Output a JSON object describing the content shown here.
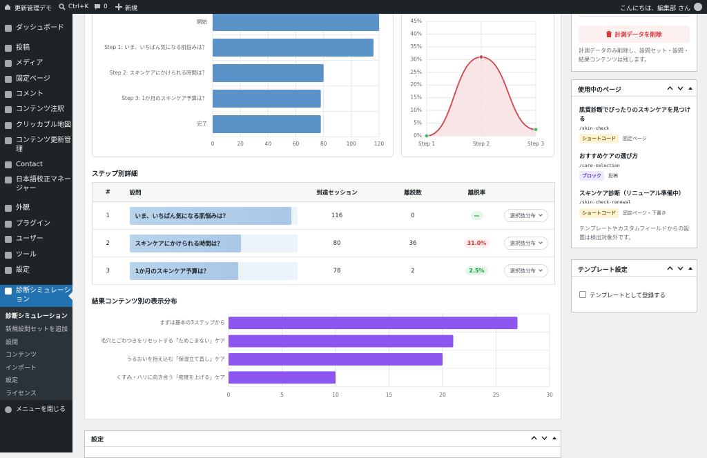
{
  "admin_bar": {
    "site": "更新管理デモ",
    "search": "Ctrl+K",
    "comments": "0",
    "new": "新規",
    "greeting": "こんにちは、編集部 さん"
  },
  "menu": {
    "items": [
      "ダッシュボード",
      "投稿",
      "メディア",
      "固定ページ",
      "コメント",
      "コンテンツ注釈",
      "クリッカブル地図",
      "コンテンツ更新管理",
      "Contact",
      "日本語校正マネージャー",
      "外観",
      "プラグイン",
      "ユーザー",
      "ツール",
      "設定"
    ],
    "current": "診断シミュレーション",
    "submenu": [
      "診断シミュレーション",
      "新規設問セットを追加",
      "設問",
      "コンテンツ",
      "インポート",
      "設定",
      "ライセンス"
    ],
    "collapse": "メニューを閉じる"
  },
  "chart_data": [
    {
      "type": "hbar",
      "categories": [
        "開始",
        "Step 1: いま、いちばん気になる肌悩みは？",
        "Step 2: スキンケアにかけられる時間は？",
        "Step 3: 1か月のスキンケア予算は？",
        "完了"
      ],
      "values": [
        120,
        116,
        80,
        78,
        78
      ],
      "color": "#5b93c9",
      "xlim": [
        0,
        120
      ],
      "xticks": [
        0,
        20,
        40,
        60,
        80,
        100,
        120
      ],
      "grid": true
    },
    {
      "type": "line",
      "categories": [
        "Step 1",
        "Step 2",
        "Step 3"
      ],
      "values": [
        0,
        31,
        2.5
      ],
      "color": "#d0454c",
      "fill_color": "#f8dde0",
      "point_colors": [
        "#4ab866",
        "#d0454c",
        "#4ab866"
      ],
      "ylim": [
        0,
        45
      ],
      "yticks": [
        {
          "value": 0,
          "label": "0%"
        },
        {
          "value": 5,
          "label": "5%"
        },
        {
          "value": 10,
          "label": "10%"
        },
        {
          "value": 15,
          "label": "15%"
        },
        {
          "value": 20,
          "label": "20%"
        },
        {
          "value": 25,
          "label": "25%"
        },
        {
          "value": 30,
          "label": "30%"
        },
        {
          "value": 35,
          "label": "35%"
        },
        {
          "value": 40,
          "label": "40%"
        },
        {
          "value": 45,
          "label": "45%"
        }
      ],
      "grid": true
    },
    {
      "type": "hbar",
      "title": "結果コンテンツ別の表示分布",
      "categories": [
        "まずは基本の3ステップから",
        "毛穴とごわつきをリセットする「ためこまない」ケア",
        "うるおいを抱え込む「保湿立て直し」ケア",
        "くすみ・ハリに向き合う「密度を上げる」ケア"
      ],
      "values": [
        27,
        21,
        20,
        10
      ],
      "color": "#8c55f0",
      "xlim": [
        0,
        30
      ],
      "xticks": [
        0,
        5,
        10,
        15,
        20,
        25,
        30
      ],
      "grid": true
    }
  ],
  "step_details": {
    "title": "ステップ別詳細",
    "columns": [
      "#",
      "設問",
      "到達セッション",
      "離脱数",
      "離脱率"
    ],
    "rows": [
      [
        1,
        "いま、いちばん気になる肌悩みは？",
        116,
        0,
        "—",
        "選択肢分布"
      ],
      [
        2,
        "スキンケアにかけられる時間は？",
        80,
        36,
        "31.0%",
        "選択肢分布"
      ],
      [
        3,
        "1か月のスキンケア予算は？",
        78,
        2,
        "2.5%",
        "選択肢分布"
      ]
    ]
  },
  "settings_panel": {
    "title": "設定"
  },
  "sidebar": {
    "delete_button": "計測データを削除",
    "delete_note": "計測データのみ削除し、設問セット・設問・結果コンテンツは残します。",
    "pages_box": {
      "title": "使用中のページ",
      "pages": [
        {
          "title": "肌質診断でぴったりのスキンケアを見つける",
          "slug": "/skin-check",
          "method": "ショートコード",
          "type": "固定ページ"
        },
        {
          "title": "おすすめケアの選び方",
          "slug": "/care-selection",
          "method": "ブロック",
          "type": "投稿"
        },
        {
          "title": "スキンケア診断（リニューアル準備中）",
          "slug": "/skin-check-renewal",
          "method": "ショートコード",
          "type": "固定ページ・下書き"
        }
      ],
      "note": "テンプレートやカスタムフィールドからの設置は検出対象外です。"
    },
    "template_box": {
      "title": "テンプレート設定",
      "checkbox": "テンプレートとして登録する"
    }
  }
}
